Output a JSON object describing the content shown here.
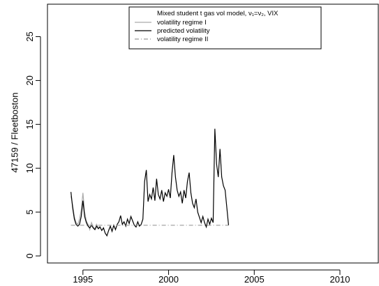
{
  "chart_data": {
    "type": "line",
    "ylabel": "47159 / Fleetboston",
    "legend_title": "Mixed student t gas vol model, ν₁=ν₂, VIX",
    "legend": "top",
    "xlim": [
      1992.93,
      2012.24
    ],
    "ylim": [
      -0.8,
      28.7
    ],
    "xticks": [
      1995,
      2000,
      2005,
      2010
    ],
    "yticks": [
      0,
      5,
      10,
      15,
      20,
      25
    ],
    "series": [
      {
        "name": "volatility regime I",
        "color": "#aaaaaa",
        "dash": "none",
        "x": [
          1994.3,
          1994.4,
          1994.5,
          1994.6,
          1994.7,
          1994.8,
          1994.9,
          1995.0,
          1995.1,
          1995.2,
          1995.3,
          1995.4,
          1995.5,
          1995.6,
          1995.7,
          1995.8,
          1995.9,
          1996.0
        ],
        "values": [
          6.8,
          5.8,
          4.5,
          3.8,
          3.6,
          4.2,
          5.2,
          7.2,
          5.0,
          4.0,
          3.6,
          3.0,
          3.8,
          3.3,
          3.1,
          3.6,
          3.2,
          3.4
        ]
      },
      {
        "name": "predicted volatility",
        "color": "#000000",
        "dash": "none",
        "x": [
          1994.3,
          1994.4,
          1994.5,
          1994.6,
          1994.7,
          1994.8,
          1994.9,
          1995.0,
          1995.1,
          1995.2,
          1995.3,
          1995.4,
          1995.5,
          1995.6,
          1995.7,
          1995.8,
          1995.9,
          1996.0,
          1996.1,
          1996.2,
          1996.3,
          1996.4,
          1996.5,
          1996.6,
          1996.7,
          1996.8,
          1996.9,
          1997.0,
          1997.1,
          1997.2,
          1997.3,
          1997.4,
          1997.5,
          1997.6,
          1997.7,
          1997.8,
          1997.9,
          1998.0,
          1998.1,
          1998.2,
          1998.3,
          1998.4,
          1998.5,
          1998.6,
          1998.7,
          1998.8,
          1998.9,
          1999.0,
          1999.1,
          1999.2,
          1999.3,
          1999.4,
          1999.5,
          1999.6,
          1999.7,
          1999.8,
          1999.9,
          2000.0,
          2000.1,
          2000.2,
          2000.3,
          2000.4,
          2000.5,
          2000.6,
          2000.7,
          2000.8,
          2000.9,
          2001.0,
          2001.1,
          2001.2,
          2001.3,
          2001.4,
          2001.5,
          2001.6,
          2001.7,
          2001.8,
          2001.9,
          2002.0,
          2002.1,
          2002.2,
          2002.3,
          2002.4,
          2002.5,
          2002.6,
          2002.7,
          2002.8,
          2002.9,
          2003.0,
          2003.1,
          2003.2,
          2003.3,
          2003.4,
          2003.5
        ],
        "values": [
          7.3,
          5.5,
          4.2,
          3.6,
          3.4,
          3.6,
          4.5,
          6.3,
          4.5,
          3.8,
          3.4,
          3.2,
          3.5,
          3.2,
          3.0,
          3.4,
          3.1,
          3.3,
          2.9,
          3.2,
          2.6,
          2.3,
          2.9,
          3.4,
          2.8,
          3.5,
          3.0,
          3.6,
          3.9,
          4.6,
          3.6,
          3.9,
          3.4,
          4.2,
          3.7,
          4.5,
          4.0,
          3.5,
          3.3,
          3.9,
          3.4,
          3.6,
          4.2,
          8.5,
          9.8,
          6.2,
          7.0,
          6.5,
          7.8,
          6.3,
          8.8,
          7.0,
          6.5,
          7.5,
          6.2,
          7.2,
          6.8,
          7.6,
          6.6,
          9.5,
          11.5,
          9.0,
          7.5,
          6.8,
          7.3,
          6.0,
          7.5,
          6.6,
          8.5,
          9.5,
          7.2,
          6.0,
          5.5,
          6.5,
          5.0,
          4.4,
          3.8,
          4.5,
          3.8,
          3.3,
          4.2,
          3.6,
          4.3,
          3.8,
          14.5,
          10.5,
          9.0,
          12.2,
          9.0,
          8.0,
          7.5,
          5.5,
          3.5
        ]
      },
      {
        "name": "volatility regime II",
        "color": "#999999",
        "dash": "6 3 1 3",
        "x": [
          1994.3,
          2003.5
        ],
        "values": [
          3.5,
          3.5
        ]
      }
    ]
  }
}
